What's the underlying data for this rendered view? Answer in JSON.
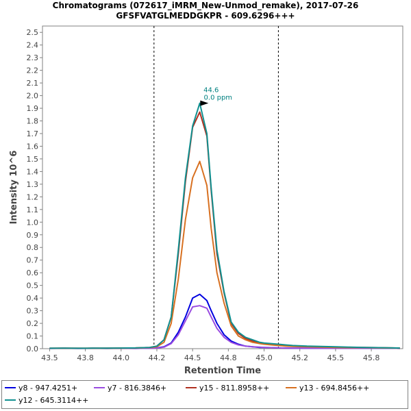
{
  "chart_data": {
    "type": "line",
    "title": "Chromatograms (072617_iMRM_New-Unmod_remake), 2017-07-26",
    "subtitle": "GFSFVATGLMEDDGKPR - 609.6296+++",
    "xlabel": "Retention Time",
    "ylabel": "Intensity 10^6",
    "xlim": [
      43.45,
      45.97
    ],
    "ylim": [
      0,
      2.55
    ],
    "x_ticks": [
      "43.5",
      "43.8",
      "44.0",
      "44.2",
      "44.5",
      "44.8",
      "45.0",
      "45.2",
      "45.5",
      "45.8"
    ],
    "x_tick_values": [
      43.5,
      43.75,
      44.0,
      44.25,
      44.5,
      44.75,
      45.0,
      45.25,
      45.5,
      45.75
    ],
    "y_ticks": [
      "0.0",
      "0.1",
      "0.2",
      "0.3",
      "0.4",
      "0.5",
      "0.6",
      "0.7",
      "0.8",
      "0.9",
      "1.0",
      "1.1",
      "1.2",
      "1.3",
      "1.4",
      "1.5",
      "1.6",
      "1.7",
      "1.8",
      "1.9",
      "2.0",
      "2.1",
      "2.2",
      "2.3",
      "2.4",
      "2.5"
    ],
    "vlines": [
      44.23,
      45.1
    ],
    "grid": false,
    "legend_position": "bottom",
    "peak_annotation": {
      "x": 44.63,
      "y": 1.94,
      "text1": "44.6",
      "text2": "0.0 ppm",
      "color": "#008080"
    },
    "x": [
      43.5,
      43.6,
      43.7,
      43.8,
      43.9,
      44.0,
      44.1,
      44.2,
      44.25,
      44.3,
      44.35,
      44.4,
      44.45,
      44.5,
      44.55,
      44.6,
      44.63,
      44.67,
      44.72,
      44.77,
      44.82,
      44.87,
      44.92,
      44.97,
      45.0,
      45.05,
      45.1,
      45.15,
      45.2,
      45.3,
      45.4,
      45.5,
      45.6,
      45.7,
      45.8,
      45.9,
      45.95
    ],
    "series": [
      {
        "name": "y8 - 947.4251+",
        "color": "#0000e0",
        "values": [
          0.002,
          0.003,
          0.002,
          0.003,
          0.002,
          0.003,
          0.002,
          0.004,
          0.006,
          0.015,
          0.045,
          0.13,
          0.25,
          0.4,
          0.43,
          0.38,
          0.3,
          0.2,
          0.11,
          0.06,
          0.035,
          0.02,
          0.015,
          0.01,
          0.01,
          0.008,
          0.006,
          0.005,
          0.004,
          0.004,
          0.003,
          0.003,
          0.003,
          0.003,
          0.003,
          0.003,
          0.002
        ]
      },
      {
        "name": "y7 - 816.3846+",
        "color": "#9a4ce0",
        "values": [
          0.002,
          0.002,
          0.002,
          0.002,
          0.002,
          0.002,
          0.002,
          0.003,
          0.005,
          0.012,
          0.04,
          0.11,
          0.22,
          0.33,
          0.34,
          0.32,
          0.25,
          0.16,
          0.09,
          0.05,
          0.03,
          0.02,
          0.015,
          0.012,
          0.01,
          0.008,
          0.006,
          0.005,
          0.004,
          0.004,
          0.003,
          0.003,
          0.003,
          0.003,
          0.003,
          0.003,
          0.002
        ]
      },
      {
        "name": "y15 - 811.8958++",
        "color": "#b03020",
        "values": [
          0.003,
          0.004,
          0.003,
          0.004,
          0.004,
          0.005,
          0.006,
          0.01,
          0.02,
          0.07,
          0.25,
          0.75,
          1.32,
          1.75,
          1.87,
          1.68,
          1.25,
          0.75,
          0.44,
          0.2,
          0.12,
          0.08,
          0.06,
          0.045,
          0.04,
          0.035,
          0.03,
          0.025,
          0.02,
          0.018,
          0.015,
          0.012,
          0.01,
          0.01,
          0.008,
          0.006,
          0.005
        ]
      },
      {
        "name": "y13 - 694.8456++",
        "color": "#d87020",
        "values": [
          0.003,
          0.003,
          0.003,
          0.003,
          0.003,
          0.004,
          0.005,
          0.008,
          0.015,
          0.05,
          0.2,
          0.55,
          1.02,
          1.35,
          1.48,
          1.29,
          0.95,
          0.6,
          0.36,
          0.18,
          0.1,
          0.07,
          0.05,
          0.04,
          0.035,
          0.03,
          0.025,
          0.02,
          0.018,
          0.015,
          0.012,
          0.01,
          0.008,
          0.008,
          0.006,
          0.005,
          0.004
        ]
      },
      {
        "name": "y12 - 645.3114++",
        "color": "#109090",
        "values": [
          0.003,
          0.004,
          0.003,
          0.004,
          0.004,
          0.005,
          0.006,
          0.01,
          0.02,
          0.07,
          0.25,
          0.78,
          1.35,
          1.76,
          1.94,
          1.7,
          1.27,
          0.78,
          0.45,
          0.21,
          0.13,
          0.09,
          0.07,
          0.05,
          0.045,
          0.04,
          0.035,
          0.03,
          0.025,
          0.02,
          0.018,
          0.015,
          0.012,
          0.01,
          0.008,
          0.006,
          0.005
        ]
      }
    ]
  }
}
